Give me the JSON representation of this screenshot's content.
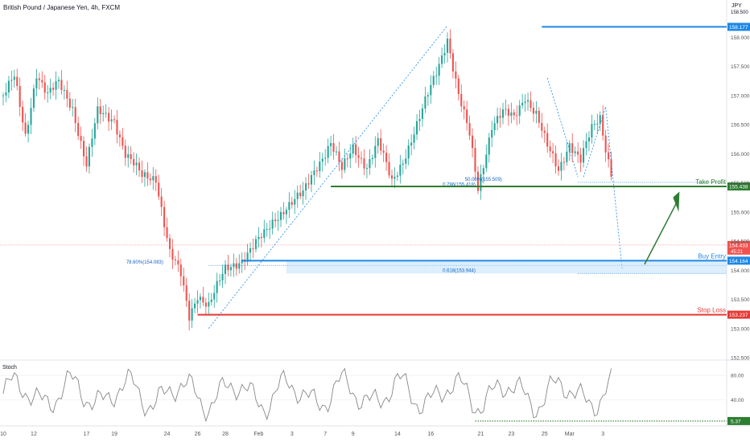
{
  "header": {
    "title": "British Pound / Japanese Yen, 4h, FXCM",
    "currency": "JPY",
    "top_price": "158.500"
  },
  "colors": {
    "up": "#26a69a",
    "down": "#ef5350",
    "take_profit": "#2e7d32",
    "buy_entry": "#1e88e5",
    "stop_loss": "#e53935",
    "stoch_line": "#888888",
    "stoch_level": "#2e7d32"
  },
  "chart_data": {
    "type": "candlestick",
    "symbol": "GBPJPY",
    "timeframe": "4h",
    "price_axis": {
      "min": 152.5,
      "max": 158.5,
      "ticks": [
        "158.000",
        "157.500",
        "157.000",
        "156.500",
        "156.000",
        "155.500",
        "155.000",
        "154.500",
        "154.000",
        "153.500",
        "153.000",
        "152.500"
      ]
    },
    "x_axis_ticks": [
      "10",
      "12",
      "17",
      "19",
      "24",
      "26",
      "28",
      "Feb",
      "3",
      "7",
      "9",
      "14",
      "16",
      "21",
      "23",
      "25",
      "Mar",
      "3"
    ],
    "x_tick_bars": [
      0,
      11,
      30,
      40,
      59,
      70,
      80,
      92,
      104,
      116,
      126,
      142,
      154,
      172,
      183,
      195,
      204,
      216
    ],
    "bar_count": 220,
    "last_price": 154.433,
    "last_price_label": "154.433",
    "countdown_label": "45:21",
    "levels": [
      {
        "name": "Take Profit",
        "price": 155.438,
        "label": "155.438",
        "start_bar": 118
      },
      {
        "name": "Buy Entry",
        "price": 154.164,
        "label": "154.164",
        "start_bar": 86
      },
      {
        "name": "Stop Loss",
        "price": 153.237,
        "label": "153.237",
        "start_bar": 70
      },
      {
        "name": "",
        "price": 158.177,
        "label": "158.177",
        "start_bar": 194
      }
    ],
    "fib_annotations": [
      {
        "text": "0.786(155.418)",
        "price": 155.418,
        "bar": 167
      },
      {
        "text": "50.00%(155.509)",
        "price": 155.509,
        "bar": 175
      },
      {
        "text": "78.60%(154.083)",
        "price": 154.083,
        "bar": 53
      },
      {
        "text": "0.618(153.944)",
        "price": 153.944,
        "bar": 167
      }
    ],
    "stoch": {
      "title": "Stoch",
      "ticks": [
        "80.00",
        "40.00"
      ],
      "ylim": [
        0,
        100
      ],
      "level": 5.37,
      "level_label": "5.37"
    },
    "candles": []
  }
}
